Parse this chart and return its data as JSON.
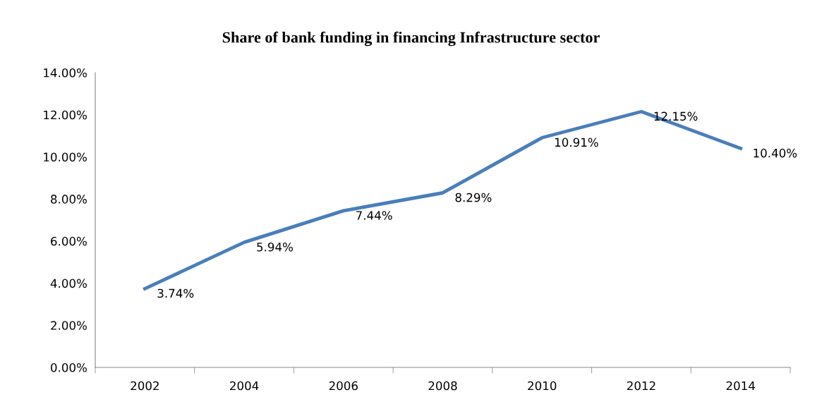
{
  "chart_data": {
    "type": "line",
    "title": "Share of bank funding in financing Infrastructure sector",
    "categories": [
      "2002",
      "2004",
      "2006",
      "2008",
      "2010",
      "2012",
      "2014"
    ],
    "series": [
      {
        "color": "#4a7ebb",
        "values": [
          3.74,
          5.94,
          7.44,
          8.29,
          10.91,
          12.15,
          10.4
        ],
        "value_labels": [
          "3.74%",
          "5.94%",
          "7.44%",
          "8.29%",
          "10.91%",
          "12.15%",
          "10.40%"
        ]
      }
    ],
    "ylim": [
      0,
      14
    ],
    "yticks": [
      {
        "value": 0,
        "label": "0.00%"
      },
      {
        "value": 2,
        "label": "2.00%"
      },
      {
        "value": 4,
        "label": "4.00%"
      },
      {
        "value": 6,
        "label": "6.00%"
      },
      {
        "value": 8,
        "label": "8.00%"
      },
      {
        "value": 10,
        "label": "10.00%"
      },
      {
        "value": 12,
        "label": "12.00%"
      },
      {
        "value": 14,
        "label": "14.00%"
      }
    ],
    "grid": false,
    "marker": "none",
    "line_style": "solid"
  }
}
